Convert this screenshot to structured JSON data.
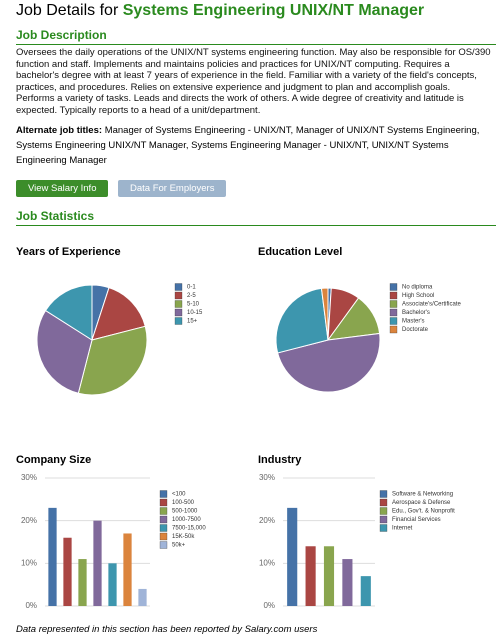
{
  "header": {
    "prefix": "Job Details for",
    "title": "Systems Engineering UNIX/NT Manager"
  },
  "description": {
    "heading": "Job Description",
    "text": "Oversees the daily operations of the UNIX/NT systems engineering function. May also be responsible for OS/390 function and staff. Implements and maintains policies and practices for UNIX/NT computing. Requires a bachelor's degree with at least 7 years of experience in the field. Familiar with a variety of the field's concepts, practices, and procedures. Relies on extensive experience and judgment to plan and accomplish goals. Performs a variety of tasks. Leads and directs the work of others. A wide degree of creativity and latitude is expected. Typically reports to a head of a unit/department."
  },
  "alternate_titles": {
    "label": "Alternate job titles:",
    "text": "Manager of Systems Engineering - UNIX/NT, Manager of UNIX/NT Systems Engineering, Systems Engineering UNIX/NT Manager, Systems Engineering Manager - UNIX/NT, UNIX/NT Systems Engineering Manager"
  },
  "buttons": [
    "View Salary Info",
    "Data For Employers"
  ],
  "statistics_heading": "Job Statistics",
  "chart_data": [
    {
      "type": "pie",
      "title": "Years of Experience",
      "categories": [
        "0-1",
        "2-5",
        "5-10",
        "10-15",
        "15+"
      ],
      "values": [
        5,
        16,
        33,
        30,
        16
      ],
      "colors": [
        "#4572a7",
        "#aa4643",
        "#89a54e",
        "#80699b",
        "#3d96ae"
      ]
    },
    {
      "type": "pie",
      "title": "Education Level",
      "categories": [
        "No diploma",
        "High School",
        "Associate's/Certificate",
        "Bachelor's",
        "Master's",
        "Doctorate"
      ],
      "values": [
        1,
        9,
        13,
        48,
        27,
        2
      ],
      "colors": [
        "#4572a7",
        "#aa4643",
        "#89a54e",
        "#80699b",
        "#3d96ae",
        "#db843d"
      ]
    },
    {
      "type": "bar",
      "title": "Company Size",
      "categories": [
        "<100",
        "100-500",
        "500-1000",
        "1000-7500",
        "7500-15,000",
        "15K-50k",
        "50k+"
      ],
      "values": [
        23,
        16,
        11,
        20,
        10,
        17,
        4
      ],
      "colors": [
        "#4572a7",
        "#aa4643",
        "#89a54e",
        "#80699b",
        "#3d96ae",
        "#db843d",
        "#a0b4d8"
      ],
      "ylim": [
        0,
        30
      ],
      "yticks": [
        {
          "value": 0,
          "label": "0%"
        },
        {
          "value": 10,
          "label": "10%"
        },
        {
          "value": 20,
          "label": "20%"
        },
        {
          "value": 30,
          "label": "30%"
        }
      ],
      "grid": true
    },
    {
      "type": "bar",
      "title": "Industry",
      "categories": [
        "Software & Networking",
        "Aerospace & Defense",
        "Edu., Gov't. & Nonprofit",
        "Financial Services",
        "Internet"
      ],
      "values": [
        23,
        14,
        14,
        11,
        7
      ],
      "colors": [
        "#4572a7",
        "#aa4643",
        "#89a54e",
        "#80699b",
        "#3d96ae"
      ],
      "ylim": [
        0,
        30
      ],
      "yticks": [
        {
          "value": 0,
          "label": "0%"
        },
        {
          "value": 10,
          "label": "10%"
        },
        {
          "value": 20,
          "label": "20%"
        },
        {
          "value": 30,
          "label": "30%"
        }
      ],
      "grid": true
    }
  ],
  "footnote": "Data represented in this section has been reported by Salary.com users"
}
